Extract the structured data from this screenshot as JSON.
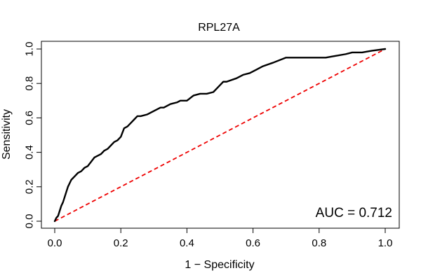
{
  "chart_data": {
    "type": "line",
    "title": "RPL27A",
    "xlabel": "1 − Specificity",
    "ylabel": "Sensitivity",
    "xlim": [
      0,
      1
    ],
    "ylim": [
      0,
      1
    ],
    "x_ticks": [
      0.0,
      0.2,
      0.4,
      0.6,
      0.8,
      1.0
    ],
    "x_tick_labels": [
      "0.0",
      "0.2",
      "0.4",
      "0.6",
      "0.8",
      "1.0"
    ],
    "y_ticks": [
      0.0,
      0.2,
      0.4,
      0.6,
      0.8,
      1.0
    ],
    "y_tick_labels": [
      "0.0",
      "0.2",
      "0.4",
      "0.6",
      "0.8",
      "1.0"
    ],
    "grid": false,
    "legend": "none",
    "annotation": "AUC = 0.712",
    "colors": {
      "roc_curve": "#000000",
      "reference_line": "#ee0000",
      "axes": "#000000",
      "background": "#ffffff"
    },
    "series": [
      {
        "name": "ROC curve",
        "style": "solid",
        "x": [
          0.0,
          0.005,
          0.01,
          0.015,
          0.02,
          0.025,
          0.03,
          0.035,
          0.04,
          0.045,
          0.05,
          0.055,
          0.06,
          0.07,
          0.08,
          0.09,
          0.1,
          0.12,
          0.14,
          0.15,
          0.16,
          0.17,
          0.18,
          0.19,
          0.2,
          0.21,
          0.22,
          0.23,
          0.24,
          0.25,
          0.26,
          0.28,
          0.3,
          0.32,
          0.33,
          0.35,
          0.37,
          0.38,
          0.4,
          0.42,
          0.44,
          0.46,
          0.48,
          0.5,
          0.51,
          0.52,
          0.55,
          0.57,
          0.59,
          0.61,
          0.63,
          0.66,
          0.7,
          0.74,
          0.78,
          0.82,
          0.85,
          0.88,
          0.9,
          0.93,
          0.96,
          1.0
        ],
        "y": [
          0.0,
          0.02,
          0.03,
          0.06,
          0.09,
          0.11,
          0.14,
          0.17,
          0.2,
          0.22,
          0.24,
          0.25,
          0.26,
          0.28,
          0.29,
          0.31,
          0.32,
          0.37,
          0.39,
          0.41,
          0.42,
          0.44,
          0.46,
          0.47,
          0.49,
          0.54,
          0.55,
          0.57,
          0.59,
          0.61,
          0.61,
          0.62,
          0.64,
          0.66,
          0.66,
          0.68,
          0.69,
          0.7,
          0.7,
          0.73,
          0.74,
          0.74,
          0.75,
          0.79,
          0.81,
          0.81,
          0.83,
          0.85,
          0.86,
          0.88,
          0.9,
          0.92,
          0.95,
          0.95,
          0.95,
          0.95,
          0.96,
          0.97,
          0.98,
          0.98,
          0.99,
          1.0
        ]
      },
      {
        "name": "Reference diagonal",
        "style": "dashed",
        "x": [
          0.0,
          1.0
        ],
        "y": [
          0.0,
          1.0
        ]
      }
    ]
  }
}
